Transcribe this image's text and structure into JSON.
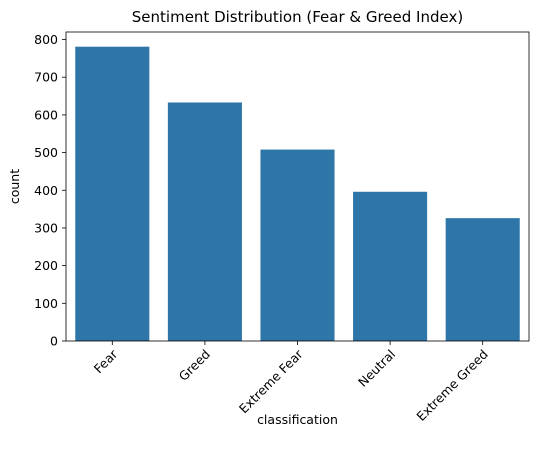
{
  "colors": {
    "bar": "#2e75a8",
    "axis": "#000000",
    "background": "#ffffff"
  },
  "chart_data": {
    "type": "bar",
    "title": "Sentiment Distribution (Fear & Greed Index)",
    "xlabel": "classification",
    "ylabel": "count",
    "categories": [
      "Fear",
      "Greed",
      "Extreme Fear",
      "Neutral",
      "Extreme Greed"
    ],
    "values": [
      781,
      633,
      508,
      396,
      326
    ],
    "ylim": [
      0,
      820
    ],
    "yticks": [
      0,
      100,
      200,
      300,
      400,
      500,
      600,
      700,
      800
    ],
    "grid": false,
    "legend": "none",
    "xtick_rotation": 45
  }
}
